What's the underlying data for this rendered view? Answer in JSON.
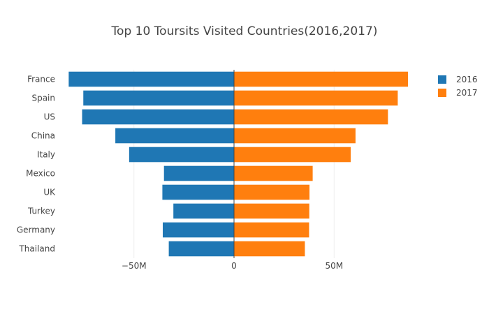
{
  "chart_data": {
    "type": "bar",
    "orientation": "horizontal",
    "barmode": "diverging",
    "title": "Top 10 Toursits Visited Countries(2016,2017)",
    "xlabel": "",
    "ylabel": "",
    "categories": [
      "France",
      "Spain",
      "US",
      "China",
      "Italy",
      "Mexico",
      "UK",
      "Turkey",
      "Germany",
      "Thailand"
    ],
    "series": [
      {
        "name": "2016",
        "color": "#1f77b4",
        "values": [
          -82.6,
          -75.3,
          -75.9,
          -59.3,
          -52.4,
          -35.0,
          -35.8,
          -30.3,
          -35.6,
          -32.6
        ]
      },
      {
        "name": "2017",
        "color": "#ff7f0e",
        "values": [
          86.9,
          81.8,
          76.9,
          60.7,
          58.3,
          39.3,
          37.7,
          37.6,
          37.5,
          35.4
        ]
      }
    ],
    "value_unit": "M",
    "xlim": [
      -89,
      89
    ],
    "xticks": [
      {
        "value": -50,
        "label": "−50M"
      },
      {
        "value": 0,
        "label": "0"
      },
      {
        "value": 50,
        "label": "50M"
      }
    ],
    "grid": true,
    "legend_position": "top-right"
  }
}
